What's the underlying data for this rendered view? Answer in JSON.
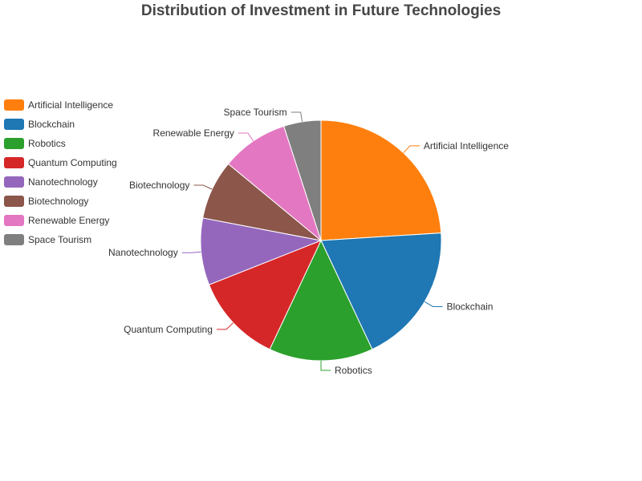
{
  "chart_data": {
    "type": "pie",
    "title": "Distribution of Investment in Future Technologies",
    "legend_position": "left",
    "slices": [
      {
        "name": "Artificial Intelligence",
        "value": 24,
        "color": "#ff7f0e"
      },
      {
        "name": "Blockchain",
        "value": 19,
        "color": "#1f77b4"
      },
      {
        "name": "Robotics",
        "value": 14,
        "color": "#2ca02c"
      },
      {
        "name": "Quantum Computing",
        "value": 12,
        "color": "#d62728"
      },
      {
        "name": "Nanotechnology",
        "value": 9,
        "color": "#9467bd"
      },
      {
        "name": "Biotechnology",
        "value": 8,
        "color": "#8c564b"
      },
      {
        "name": "Renewable Energy",
        "value": 9,
        "color": "#e377c2"
      },
      {
        "name": "Space Tourism",
        "value": 5,
        "color": "#7f7f7f"
      }
    ]
  }
}
